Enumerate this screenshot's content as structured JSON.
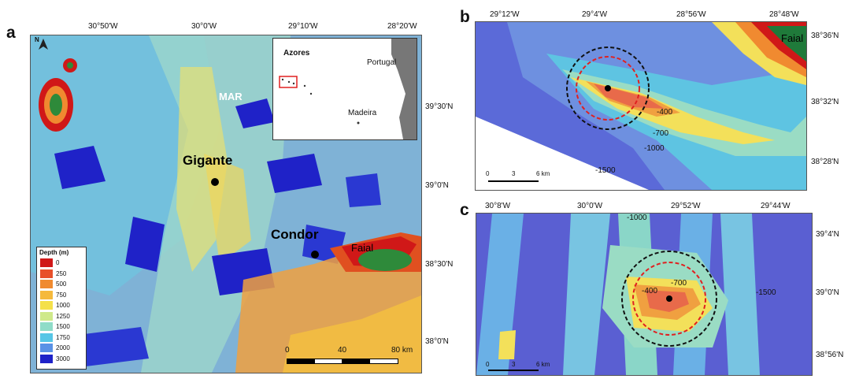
{
  "panel_a": {
    "letter": "a",
    "top_ticks": [
      "30°50'W",
      "30°0'W",
      "29°10'W",
      "28°20'W"
    ],
    "right_ticks": [
      "39°30'N",
      "39°0'N",
      "38°30'N",
      "38°0'N"
    ],
    "labels": {
      "mar": "MAR",
      "gigante": "Gigante",
      "condor": "Condor",
      "faial": "Faial"
    },
    "inset": {
      "azores": "Azores",
      "portugal": "Portugal",
      "madeira": "Madeira"
    },
    "legend": {
      "title": "Depth (m)",
      "entries": [
        {
          "label": "0",
          "color": "#d01818"
        },
        {
          "label": "250",
          "color": "#e8502a"
        },
        {
          "label": "500",
          "color": "#f08a30"
        },
        {
          "label": "750",
          "color": "#f5b93c"
        },
        {
          "label": "1000",
          "color": "#f4e04a"
        },
        {
          "label": "1250",
          "color": "#cfe98a"
        },
        {
          "label": "1500",
          "color": "#8fdcc8"
        },
        {
          "label": "1750",
          "color": "#56c6e6"
        },
        {
          "label": "2000",
          "color": "#5a92e6"
        },
        {
          "label": "3000",
          "color": "#1f22c8"
        }
      ]
    },
    "scale": {
      "start": "0",
      "mid": "40",
      "end": "80 km"
    }
  },
  "panel_b": {
    "letter": "b",
    "top_ticks": [
      "29°12'W",
      "29°4'W",
      "28°56'W",
      "28°48'W"
    ],
    "right_ticks": [
      "38°36'N",
      "38°32'N",
      "38°28'N"
    ],
    "contours": [
      "-400",
      "-700",
      "-1000",
      "-1500"
    ],
    "faial": "Faial",
    "scale": {
      "start": "0",
      "mid": "3",
      "end": "6 km"
    }
  },
  "panel_c": {
    "letter": "c",
    "top_ticks": [
      "30°8'W",
      "30°0'W",
      "29°52'W",
      "29°44'W"
    ],
    "right_ticks": [
      "39°4'N",
      "39°0'N",
      "38°56'N"
    ],
    "contours": [
      "-1000",
      "-400",
      "-700",
      "-1500"
    ],
    "scale": {
      "start": "0",
      "mid": "3",
      "end": "6 km"
    }
  },
  "colors": {
    "deep": "#1f22c8",
    "mid_blue": "#5a92e6",
    "cyan": "#56c6e6",
    "teal": "#8fdcc8",
    "yellow": "#f4e04a",
    "orange": "#f08a30",
    "red": "#d01818",
    "land": "#2e8a3a",
    "ring_black": "#111111",
    "ring_red": "#e02020"
  }
}
